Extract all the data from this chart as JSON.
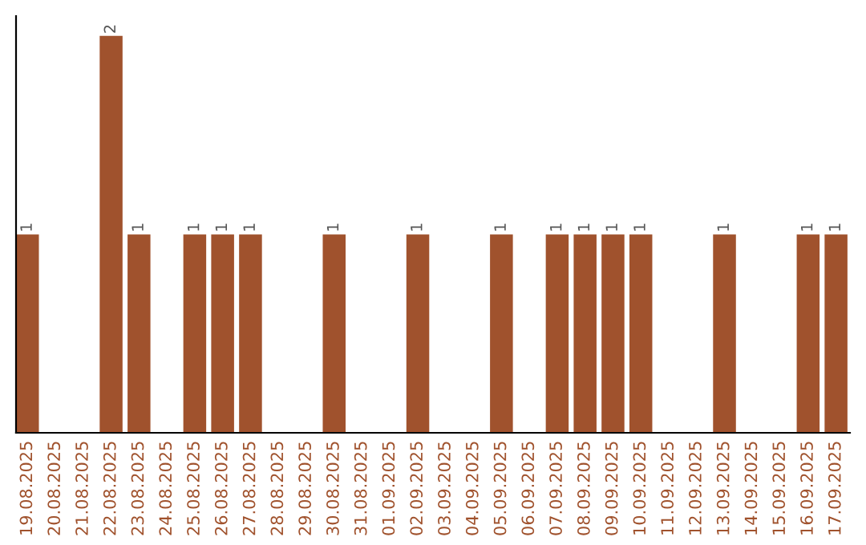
{
  "chart_data": {
    "type": "bar",
    "categories": [
      "19.08.2025",
      "20.08.2025",
      "21.08.2025",
      "22.08.2025",
      "23.08.2025",
      "24.08.2025",
      "25.08.2025",
      "26.08.2025",
      "27.08.2025",
      "28.08.2025",
      "29.08.2025",
      "30.08.2025",
      "31.08.2025",
      "01.09.2025",
      "02.09.2025",
      "03.09.2025",
      "04.09.2025",
      "05.09.2025",
      "06.09.2025",
      "07.09.2025",
      "08.09.2025",
      "09.09.2025",
      "10.09.2025",
      "11.09.2025",
      "12.09.2025",
      "13.09.2025",
      "14.09.2025",
      "15.09.2025",
      "16.09.2025",
      "17.09.2025"
    ],
    "values": [
      1,
      0,
      0,
      2,
      1,
      0,
      1,
      1,
      1,
      0,
      0,
      1,
      0,
      0,
      1,
      0,
      0,
      1,
      0,
      1,
      1,
      1,
      1,
      0,
      0,
      1,
      0,
      0,
      1,
      1
    ],
    "value_labels": [
      "1",
      null,
      null,
      "2",
      "1",
      null,
      "1",
      "1",
      "1",
      null,
      null,
      "1",
      null,
      null,
      "1",
      null,
      null,
      "1",
      null,
      "1",
      "1",
      "1",
      "1",
      null,
      null,
      "1",
      null,
      null,
      "1",
      "1"
    ],
    "color": "#a0522d",
    "ylim": [
      0,
      2.1
    ],
    "tick_labels": "x",
    "grid": false,
    "legend": false
  }
}
